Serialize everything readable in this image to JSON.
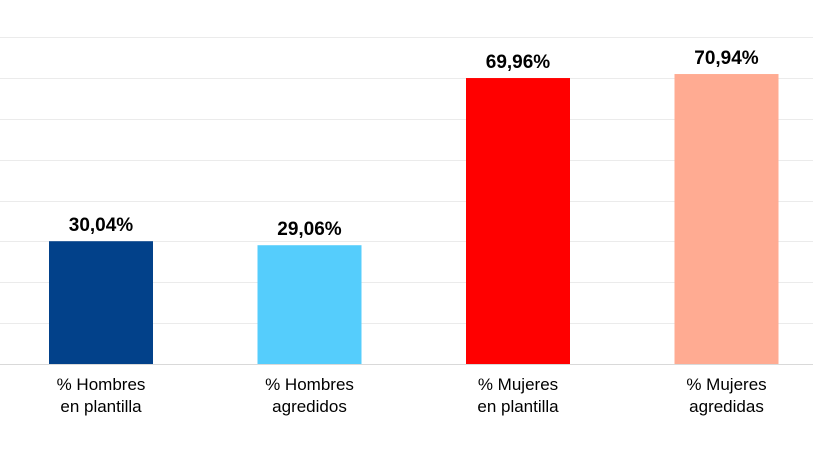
{
  "chart_data": {
    "type": "bar",
    "categories": [
      [
        "% Hombres",
        "en plantilla"
      ],
      [
        "% Hombres",
        "agredidos"
      ],
      [
        "% Mujeres",
        "en plantilla"
      ],
      [
        "% Mujeres",
        "agredidas"
      ]
    ],
    "values": [
      30.04,
      29.06,
      69.96,
      70.94
    ],
    "value_labels": [
      "30,04%",
      "29,06%",
      "69,96%",
      "70,94%"
    ],
    "colors": [
      "#02418a",
      "#55cdfc",
      "#ff0000",
      "#ffab92"
    ],
    "ylim": [
      0,
      80
    ],
    "grid": true,
    "legend": "none"
  }
}
